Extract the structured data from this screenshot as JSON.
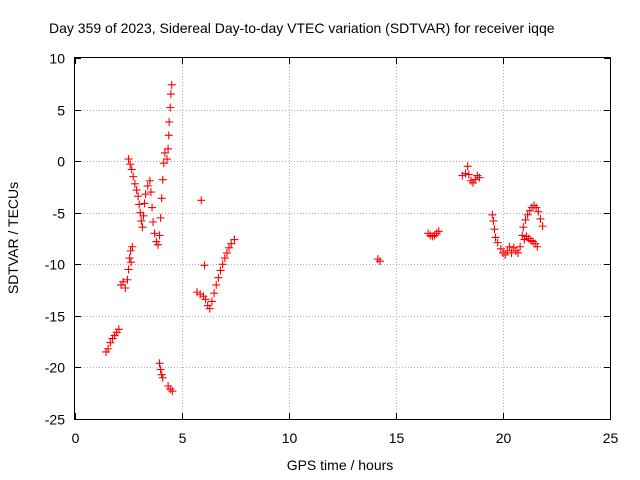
{
  "chart_data": {
    "type": "scatter",
    "title": "Day 359 of 2023, Sidereal Day-to-day VTEC variation (SDTVAR) for receiver iqqe",
    "xlabel": "GPS time / hours",
    "ylabel": "SDTVAR / TECUs",
    "xlim": [
      0,
      25
    ],
    "ylim": [
      -25,
      10
    ],
    "xticks": [
      "0",
      "5",
      "10",
      "15",
      "20",
      "25"
    ],
    "yticks": [
      "-25",
      "-20",
      "-15",
      "-10",
      "-5",
      "0",
      "5",
      "10"
    ],
    "grid": true,
    "marker": "+",
    "colors": {
      "series": "#ff0000",
      "axes": "#000000",
      "grid": "#b0b0b0"
    },
    "series": [
      {
        "name": "SDTVAR",
        "points": [
          [
            1.45,
            -18.5
          ],
          [
            1.55,
            -18.2
          ],
          [
            1.65,
            -17.6
          ],
          [
            1.75,
            -17.2
          ],
          [
            1.85,
            -16.9
          ],
          [
            1.95,
            -16.6
          ],
          [
            2.05,
            -16.3
          ],
          [
            2.15,
            -12.0
          ],
          [
            2.25,
            -11.7
          ],
          [
            2.35,
            -12.3
          ],
          [
            2.45,
            -11.5
          ],
          [
            2.5,
            -10.5
          ],
          [
            2.55,
            -9.4
          ],
          [
            2.6,
            -8.7
          ],
          [
            2.62,
            -9.8
          ],
          [
            2.68,
            -8.3
          ],
          [
            2.5,
            0.2
          ],
          [
            2.58,
            -0.3
          ],
          [
            2.65,
            -0.8
          ],
          [
            2.72,
            -1.5
          ],
          [
            2.8,
            -2.2
          ],
          [
            2.88,
            -2.8
          ],
          [
            2.95,
            -3.4
          ],
          [
            3.0,
            -4.2
          ],
          [
            3.05,
            -5.0
          ],
          [
            3.1,
            -5.8
          ],
          [
            3.15,
            -6.4
          ],
          [
            3.2,
            -5.3
          ],
          [
            3.25,
            -4.1
          ],
          [
            3.3,
            -3.2
          ],
          [
            3.4,
            -2.4
          ],
          [
            3.5,
            -1.9
          ],
          [
            3.55,
            -3.0
          ],
          [
            3.6,
            -4.5
          ],
          [
            3.65,
            -5.9
          ],
          [
            3.72,
            -7.0
          ],
          [
            3.8,
            -7.8
          ],
          [
            3.88,
            -8.1
          ],
          [
            3.95,
            -19.6
          ],
          [
            4.0,
            -20.2
          ],
          [
            4.05,
            -20.7
          ],
          [
            4.1,
            -21.0
          ],
          [
            3.95,
            -7.2
          ],
          [
            4.0,
            -5.5
          ],
          [
            4.05,
            -3.6
          ],
          [
            4.1,
            -1.8
          ],
          [
            4.15,
            -0.2
          ],
          [
            4.2,
            0.8
          ],
          [
            4.3,
            0.2
          ],
          [
            4.35,
            1.2
          ],
          [
            4.38,
            2.5
          ],
          [
            4.4,
            3.8
          ],
          [
            4.45,
            5.2
          ],
          [
            4.48,
            6.5
          ],
          [
            4.52,
            7.4
          ],
          [
            4.35,
            -21.8
          ],
          [
            4.45,
            -22.1
          ],
          [
            4.55,
            -22.3
          ],
          [
            5.7,
            -12.7
          ],
          [
            5.85,
            -12.9
          ],
          [
            5.9,
            -3.8
          ],
          [
            6.0,
            -13.1
          ],
          [
            6.1,
            -13.4
          ],
          [
            6.05,
            -10.1
          ],
          [
            6.2,
            -14.0
          ],
          [
            6.3,
            -14.3
          ],
          [
            6.4,
            -13.6
          ],
          [
            6.5,
            -12.8
          ],
          [
            6.6,
            -12.0
          ],
          [
            6.7,
            -11.3
          ],
          [
            6.8,
            -10.6
          ],
          [
            6.9,
            -10.0
          ],
          [
            7.0,
            -9.4
          ],
          [
            7.1,
            -8.9
          ],
          [
            7.2,
            -8.4
          ],
          [
            7.3,
            -8.0
          ],
          [
            7.45,
            -7.6
          ],
          [
            14.15,
            -9.5
          ],
          [
            14.25,
            -9.7
          ],
          [
            16.5,
            -7.0
          ],
          [
            16.6,
            -7.2
          ],
          [
            16.7,
            -7.3
          ],
          [
            16.8,
            -7.2
          ],
          [
            16.9,
            -7.0
          ],
          [
            17.0,
            -6.8
          ],
          [
            18.1,
            -1.4
          ],
          [
            18.25,
            -1.2
          ],
          [
            18.35,
            -0.5
          ],
          [
            18.4,
            -1.3
          ],
          [
            18.5,
            -1.9
          ],
          [
            18.6,
            -2.1
          ],
          [
            18.7,
            -1.8
          ],
          [
            18.8,
            -1.4
          ],
          [
            18.9,
            -1.6
          ],
          [
            19.5,
            -5.2
          ],
          [
            19.55,
            -5.8
          ],
          [
            19.6,
            -6.6
          ],
          [
            19.65,
            -7.4
          ],
          [
            19.75,
            -7.9
          ],
          [
            19.9,
            -8.5
          ],
          [
            20.0,
            -8.9
          ],
          [
            20.1,
            -9.1
          ],
          [
            20.2,
            -8.7
          ],
          [
            20.3,
            -8.3
          ],
          [
            20.4,
            -8.9
          ],
          [
            20.5,
            -8.4
          ],
          [
            20.6,
            -8.7
          ],
          [
            20.7,
            -8.9
          ],
          [
            20.8,
            -8.3
          ],
          [
            20.9,
            -7.2
          ],
          [
            20.95,
            -6.4
          ],
          [
            21.05,
            -5.7
          ],
          [
            21.15,
            -5.2
          ],
          [
            21.25,
            -4.8
          ],
          [
            21.35,
            -4.5
          ],
          [
            21.45,
            -4.3
          ],
          [
            21.55,
            -4.5
          ],
          [
            21.65,
            -4.9
          ],
          [
            21.75,
            -5.6
          ],
          [
            21.85,
            -6.3
          ],
          [
            21.0,
            -7.6
          ],
          [
            21.1,
            -7.3
          ],
          [
            21.2,
            -7.5
          ],
          [
            21.3,
            -7.7
          ],
          [
            21.4,
            -7.8
          ],
          [
            21.5,
            -8.0
          ],
          [
            21.6,
            -8.3
          ]
        ]
      }
    ]
  }
}
